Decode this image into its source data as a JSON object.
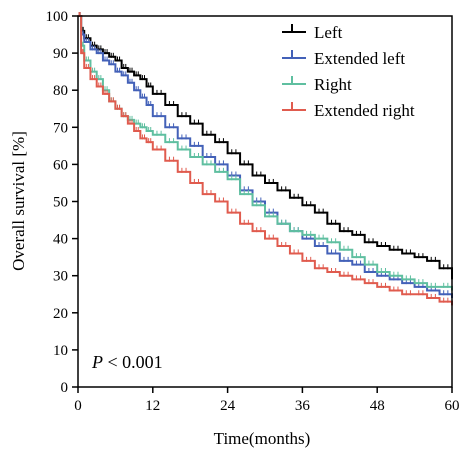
{
  "chart_data": {
    "type": "line",
    "step": true,
    "xlabel": "Time(months)",
    "ylabel": "Overall survival [%]",
    "xlim": [
      0,
      60
    ],
    "ylim": [
      0,
      100
    ],
    "xticks": [
      0,
      12,
      24,
      36,
      48,
      60
    ],
    "yticks": [
      0,
      10,
      20,
      30,
      40,
      50,
      60,
      70,
      80,
      90,
      100
    ],
    "grid": false,
    "legend_position": "top-right",
    "annotation": {
      "italic": "P",
      "text": " < 0.001"
    },
    "series": [
      {
        "name": "Left",
        "color": "#000000",
        "x": [
          0,
          0.5,
          1,
          2,
          3,
          4,
          5,
          6,
          7,
          8,
          9,
          10,
          11,
          12,
          14,
          16,
          18,
          20,
          22,
          24,
          26,
          28,
          30,
          32,
          34,
          36,
          38,
          40,
          42,
          44,
          46,
          48,
          50,
          52,
          54,
          56,
          58,
          60
        ],
        "y": [
          100,
          96,
          94,
          92,
          91,
          90,
          89,
          88,
          86,
          85,
          84,
          83,
          81,
          79,
          76,
          73,
          71,
          68,
          66,
          63,
          60,
          57,
          55,
          53,
          51,
          49,
          47,
          44,
          42,
          41,
          39,
          38,
          37,
          36,
          35,
          34,
          32,
          29
        ]
      },
      {
        "name": "Extended left",
        "color": "#4361b8",
        "x": [
          0,
          0.5,
          1,
          2,
          3,
          4,
          5,
          6,
          7,
          8,
          9,
          10,
          11,
          12,
          14,
          16,
          18,
          20,
          22,
          24,
          26,
          28,
          30,
          32,
          34,
          36,
          38,
          40,
          42,
          44,
          46,
          48,
          50,
          52,
          54,
          56,
          58,
          60
        ],
        "y": [
          100,
          95,
          93,
          91,
          90,
          88,
          87,
          85,
          84,
          82,
          80,
          78,
          76,
          73,
          70,
          67,
          65,
          62,
          60,
          57,
          53,
          50,
          47,
          44,
          42,
          40,
          38,
          36,
          34,
          33,
          31,
          30,
          29,
          28,
          27,
          26,
          25,
          24
        ]
      },
      {
        "name": "Right",
        "color": "#5fbfa0",
        "x": [
          0,
          0.5,
          1,
          2,
          3,
          4,
          5,
          6,
          7,
          8,
          9,
          10,
          11,
          12,
          14,
          16,
          18,
          20,
          22,
          24,
          26,
          28,
          30,
          32,
          34,
          36,
          38,
          40,
          42,
          44,
          46,
          48,
          50,
          52,
          54,
          56,
          58,
          60
        ],
        "y": [
          100,
          92,
          88,
          85,
          83,
          80,
          77,
          75,
          73,
          72,
          71,
          70,
          69,
          68,
          66,
          64,
          62,
          60,
          58,
          56,
          52,
          49,
          46,
          44,
          42,
          41,
          40,
          39,
          37,
          35,
          33,
          31,
          30,
          29,
          28,
          27,
          27,
          26
        ]
      },
      {
        "name": "Extended right",
        "color": "#e05b4e",
        "x": [
          0,
          0.5,
          1,
          2,
          3,
          4,
          5,
          6,
          7,
          8,
          9,
          10,
          11,
          12,
          14,
          16,
          18,
          20,
          22,
          24,
          26,
          28,
          30,
          32,
          34,
          36,
          38,
          40,
          42,
          44,
          46,
          48,
          50,
          52,
          54,
          56,
          58,
          60
        ],
        "y": [
          100,
          90,
          86,
          83,
          81,
          79,
          77,
          75,
          73,
          71,
          69,
          67,
          66,
          64,
          61,
          58,
          55,
          52,
          50,
          47,
          44,
          42,
          40,
          38,
          36,
          34,
          32,
          31,
          30,
          29,
          28,
          27,
          26,
          25,
          25,
          24,
          23,
          22
        ]
      }
    ]
  }
}
